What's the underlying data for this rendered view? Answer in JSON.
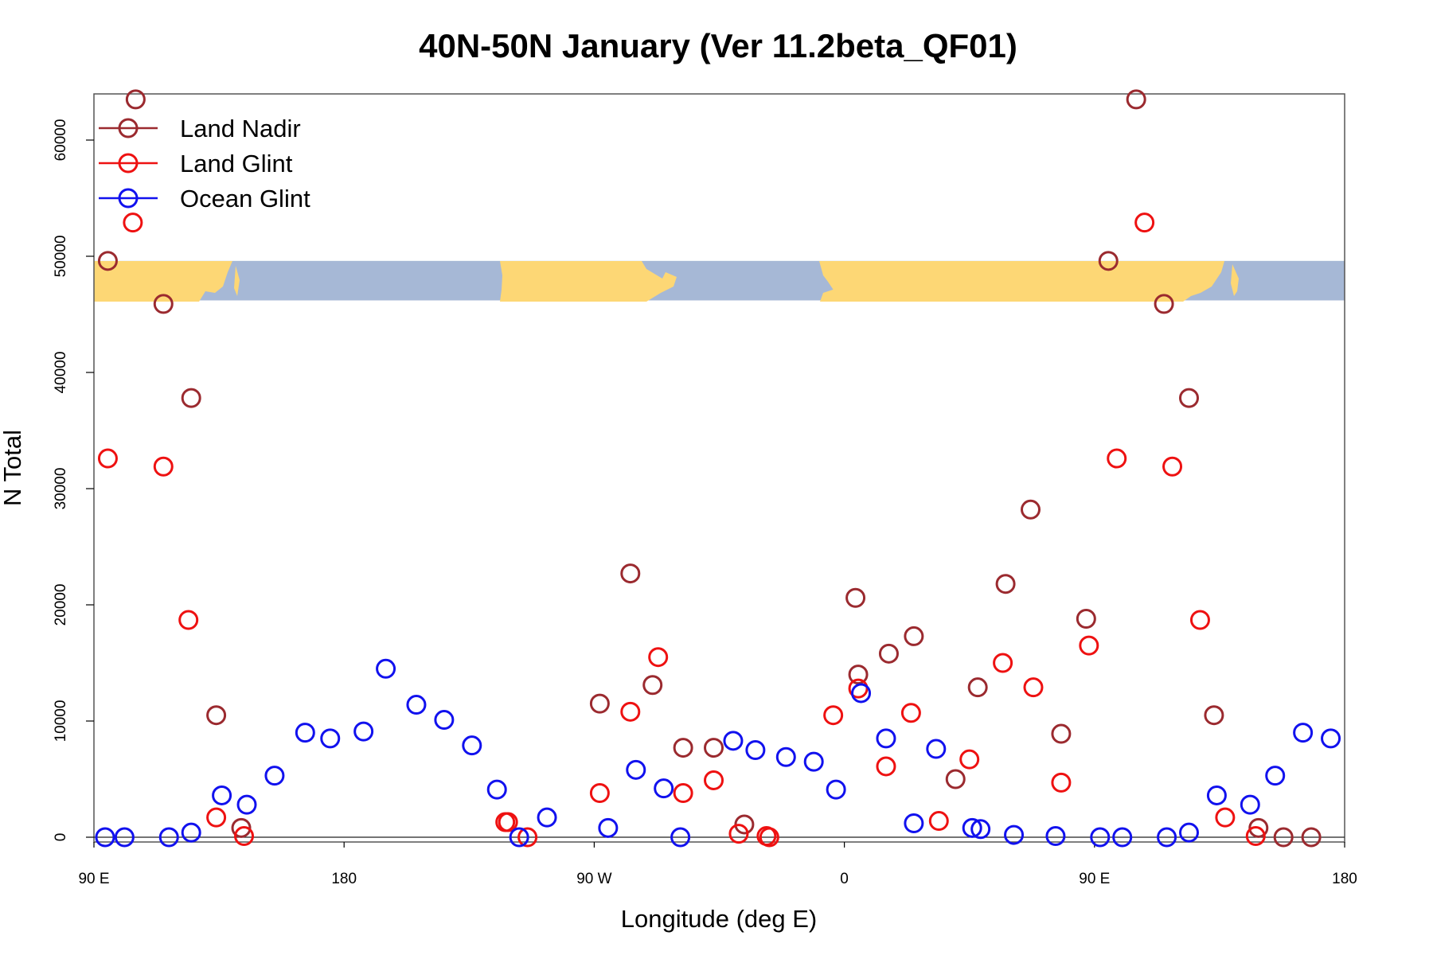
{
  "colors": {
    "land_nadir": "#9b2a2f",
    "land_glint": "#ee1111",
    "ocean_glint": "#1111ee",
    "map_land": "#fdd775",
    "map_ocean": "#a6b8d6"
  },
  "chart_data": {
    "type": "scatter",
    "title": "40N-50N January (Ver 11.2beta_QF01)",
    "xlabel": "Longitude (deg E)",
    "ylabel": "N Total",
    "xlim": [
      90,
      540
    ],
    "ylim": [
      0,
      63500
    ],
    "x_ticks": [
      {
        "value": 90,
        "label": "90 E"
      },
      {
        "value": 180,
        "label": "180"
      },
      {
        "value": 270,
        "label": "90 W"
      },
      {
        "value": 360,
        "label": "0"
      },
      {
        "value": 450,
        "label": "90 E"
      },
      {
        "value": 540,
        "label": "180"
      }
    ],
    "y_ticks": [
      0,
      10000,
      20000,
      30000,
      40000,
      50000,
      60000
    ],
    "map_strip": {
      "lat_range": "40N-50N",
      "y_min": 46200,
      "y_max": 49600
    },
    "legend": [
      "Land Nadir",
      "Land Glint",
      "Ocean Glint"
    ],
    "series": [
      {
        "name": "Land Nadir",
        "color_key": "land_nadir",
        "x": [
          95,
          105,
          115,
          125,
          134,
          143,
          272,
          283,
          291,
          302,
          313,
          324,
          364,
          365,
          376,
          385,
          400,
          408,
          418,
          427,
          438,
          447,
          455,
          465,
          475,
          484,
          493,
          509,
          518,
          528
        ],
        "y": [
          49600,
          63500,
          45900,
          37800,
          10500,
          800,
          11500,
          22700,
          13100,
          7700,
          7700,
          1100,
          20600,
          14000,
          15800,
          17300,
          5000,
          12900,
          21800,
          28200,
          8900,
          18800,
          49600,
          63500,
          45900,
          37800,
          10500,
          800,
          0,
          0
        ]
      },
      {
        "name": "Land Glint",
        "color_key": "land_glint",
        "x": [
          95,
          104,
          115,
          124,
          134,
          144,
          238,
          239,
          246,
          272,
          283,
          293,
          302,
          313,
          322,
          332,
          333,
          356,
          365,
          375,
          384,
          394,
          405,
          417,
          428,
          438,
          448,
          458,
          468,
          478,
          488,
          497,
          508
        ],
        "y": [
          32600,
          52900,
          31900,
          18700,
          1700,
          100,
          1300,
          1300,
          0,
          3800,
          10800,
          15500,
          3800,
          4900,
          300,
          100,
          0,
          10500,
          12800,
          6100,
          10700,
          1400,
          6700,
          15000,
          12900,
          4700,
          16500,
          32600,
          52900,
          31900,
          18700,
          1700,
          100
        ],
        "y_note": "values near zero cluster along the baseline"
      },
      {
        "name": "Ocean Glint",
        "color_key": "ocean_glint",
        "x": [
          94,
          101,
          117,
          125,
          136,
          145,
          155,
          166,
          175,
          187,
          195,
          206,
          216,
          226,
          235,
          243,
          253,
          275,
          285,
          295,
          301,
          320,
          328,
          339,
          349,
          357,
          366,
          375,
          385,
          393,
          406,
          409,
          421,
          436,
          452,
          460,
          476,
          484,
          494,
          506,
          515,
          525,
          535
        ],
        "y": [
          0,
          0,
          0,
          400,
          3600,
          2800,
          5300,
          9000,
          8500,
          9100,
          14500,
          11400,
          10100,
          7900,
          4100,
          0,
          1700,
          800,
          5800,
          4200,
          0,
          8300,
          7500,
          6900,
          6500,
          4100,
          12400,
          8500,
          1200,
          7600,
          800,
          700,
          200,
          100,
          0,
          0,
          0,
          400,
          3600,
          2800,
          5300,
          9000,
          8500
        ]
      }
    ]
  }
}
